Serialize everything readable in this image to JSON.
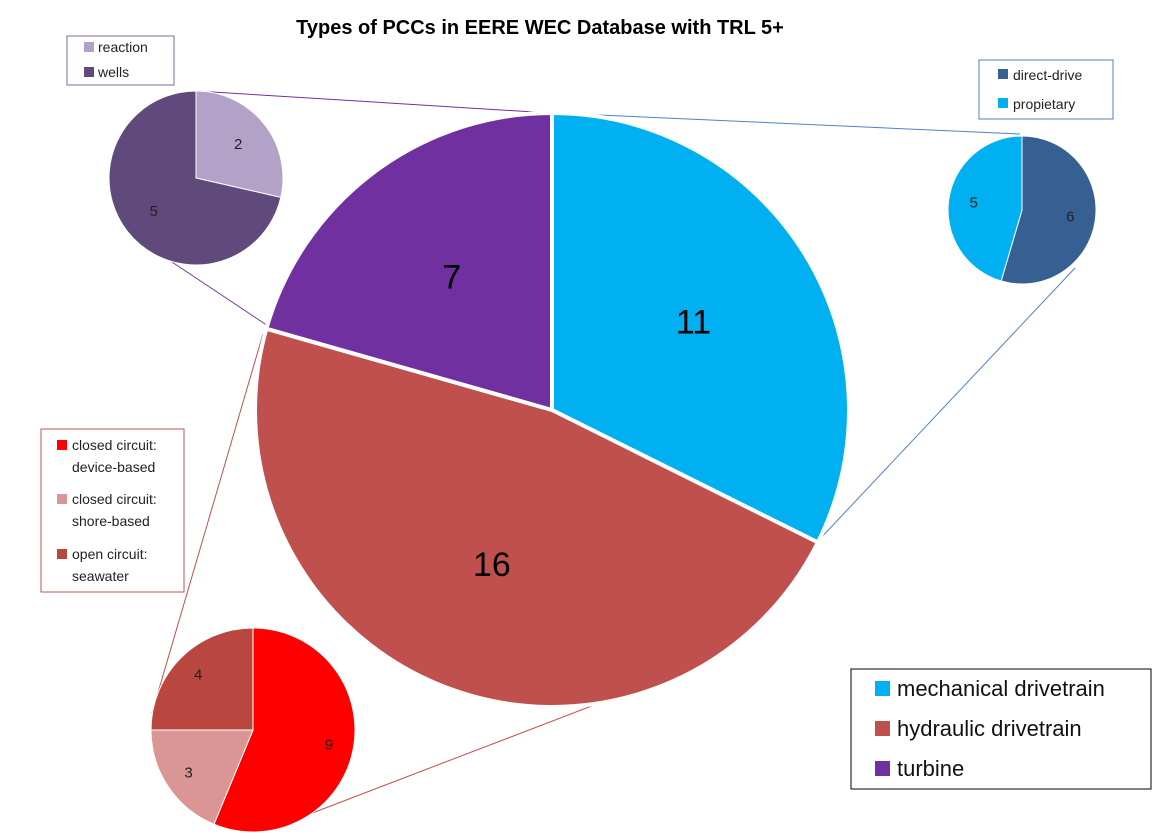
{
  "chart_data": [
    {
      "type": "pie",
      "title": "Types of PCCs in EERE WEC Database with TRL 5+",
      "slices": [
        {
          "label": "mechanical drivetrain",
          "value": 11,
          "color": "#00B0F0"
        },
        {
          "label": "hydraulic drivetrain",
          "value": 16,
          "color": "#C0504D"
        },
        {
          "label": "turbine",
          "value": 7,
          "color": "#7030A0"
        }
      ],
      "legend_position": "bottom-right"
    },
    {
      "type": "pie",
      "breakdown_of": "turbine",
      "slices": [
        {
          "label": "reaction",
          "value": 2,
          "color": "#B3A2C7"
        },
        {
          "label": "wells",
          "value": 5,
          "color": "#604A7B"
        }
      ],
      "legend_position": "top-left"
    },
    {
      "type": "pie",
      "breakdown_of": "mechanical drivetrain",
      "slices": [
        {
          "label": "direct-drive",
          "value": 6,
          "color": "#376092"
        },
        {
          "label": "propietary",
          "value": 5,
          "color": "#00B0F0"
        }
      ],
      "legend_position": "top-right"
    },
    {
      "type": "pie",
      "breakdown_of": "hydraulic drivetrain",
      "slices": [
        {
          "label": "closed circuit: device-based",
          "value": 9,
          "color": "#FF0000"
        },
        {
          "label": "closed circuit: shore-based",
          "value": 3,
          "color": "#D99694"
        },
        {
          "label": "open circuit: seawater",
          "value": 4,
          "color": "#B9473F"
        }
      ],
      "legend_position": "left"
    }
  ],
  "legends": {
    "turbine": [
      "reaction",
      "wells"
    ],
    "mechanical": [
      "direct-drive",
      "propietary"
    ],
    "hydraulic": [
      {
        "line1": "closed circuit:",
        "line2": "device-based"
      },
      {
        "line1": "closed circuit:",
        "line2": "shore-based"
      },
      {
        "line1": "open circuit:",
        "line2": "seawater"
      }
    ],
    "main": [
      "mechanical drivetrain",
      "hydraulic drivetrain",
      "turbine"
    ]
  }
}
